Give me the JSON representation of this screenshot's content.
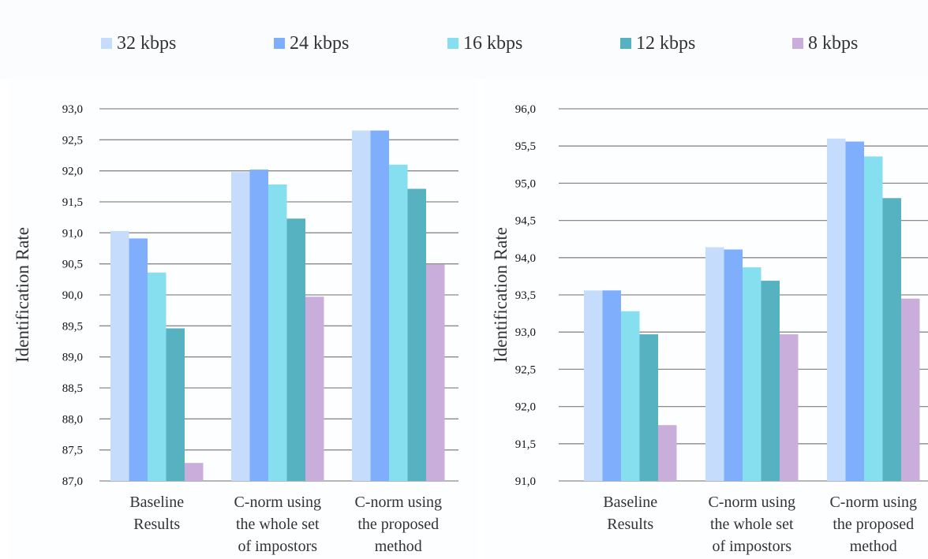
{
  "legend": [
    {
      "label": "32 kbps",
      "color": "#c5dcfc"
    },
    {
      "label": "24 kbps",
      "color": "#7eaefc"
    },
    {
      "label": "16 kbps",
      "color": "#86dfef"
    },
    {
      "label": "12 kbps",
      "color": "#56b2c0"
    },
    {
      "label": "8 kbps",
      "color": "#c9aedc"
    }
  ],
  "chart_data": [
    {
      "type": "bar",
      "ylabel": "Identification Rate",
      "ylim": [
        87.0,
        93.0
      ],
      "ytick_step": 0.5,
      "grid": true,
      "legend_position": "top",
      "categories": [
        [
          "Baseline",
          "Results"
        ],
        [
          "C-norm using",
          "the whole set",
          "of impostors"
        ],
        [
          "C-norm using",
          "the proposed",
          "method"
        ]
      ],
      "series": [
        {
          "name": "32 kbps",
          "values": [
            91.03,
            91.98,
            92.65
          ]
        },
        {
          "name": "24 kbps",
          "values": [
            90.91,
            92.02,
            92.65
          ]
        },
        {
          "name": "16 kbps",
          "values": [
            90.36,
            91.78,
            92.1
          ]
        },
        {
          "name": "12 kbps",
          "values": [
            89.46,
            91.23,
            91.71
          ]
        },
        {
          "name": "8 kbps",
          "values": [
            87.29,
            89.97,
            90.49
          ]
        }
      ]
    },
    {
      "type": "bar",
      "ylabel": "Identification Rate",
      "ylim": [
        91.0,
        96.0
      ],
      "ytick_step": 0.5,
      "grid": true,
      "legend_position": "top",
      "categories": [
        [
          "Baseline",
          "Results"
        ],
        [
          "C-norm using",
          "the whole set",
          "of impostors"
        ],
        [
          "C-norm using",
          "the proposed",
          "method"
        ]
      ],
      "series": [
        {
          "name": "32 kbps",
          "values": [
            93.56,
            94.14,
            95.6
          ]
        },
        {
          "name": "24 kbps",
          "values": [
            93.56,
            94.11,
            95.56
          ]
        },
        {
          "name": "16 kbps",
          "values": [
            93.28,
            93.87,
            95.36
          ]
        },
        {
          "name": "12 kbps",
          "values": [
            92.97,
            93.69,
            94.8
          ]
        },
        {
          "name": "8 kbps",
          "values": [
            91.75,
            92.97,
            93.45
          ]
        }
      ]
    }
  ]
}
